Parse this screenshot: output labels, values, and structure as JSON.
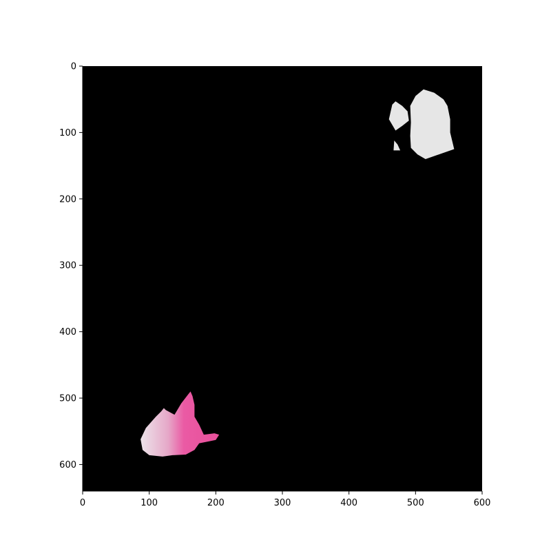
{
  "figure": {
    "background_color": "#ffffff",
    "image_background_color": "#000000"
  },
  "chart_data": {
    "type": "image",
    "title": "",
    "xlabel": "",
    "ylabel": "",
    "xlim": [
      0,
      600
    ],
    "ylim": [
      640,
      0
    ],
    "x_ticks": [
      0,
      100,
      200,
      300,
      400,
      500,
      600
    ],
    "y_ticks": [
      0,
      100,
      200,
      300,
      400,
      500,
      600
    ],
    "x_tick_labels": [
      "0",
      "100",
      "200",
      "300",
      "400",
      "500",
      "600"
    ],
    "y_tick_labels": [
      "0",
      "100",
      "200",
      "300",
      "400",
      "500",
      "600"
    ],
    "grid": false,
    "regions": [
      {
        "name": "pink-flower-petals",
        "color": "#e8589f",
        "highlight_color": "#e6e0e6",
        "polygon": [
          [
            87,
            562
          ],
          [
            95,
            545
          ],
          [
            110,
            528
          ],
          [
            118,
            520
          ],
          [
            122,
            515
          ],
          [
            125,
            518
          ],
          [
            138,
            525
          ],
          [
            148,
            508
          ],
          [
            158,
            495
          ],
          [
            162,
            490
          ],
          [
            165,
            497
          ],
          [
            168,
            510
          ],
          [
            168,
            528
          ],
          [
            175,
            540
          ],
          [
            182,
            555
          ],
          [
            198,
            553
          ],
          [
            205,
            555
          ],
          [
            200,
            563
          ],
          [
            190,
            565
          ],
          [
            175,
            568
          ],
          [
            168,
            578
          ],
          [
            155,
            585
          ],
          [
            135,
            586
          ],
          [
            120,
            588
          ],
          [
            100,
            586
          ],
          [
            90,
            578
          ]
        ]
      },
      {
        "name": "white-blob-large",
        "color": "#e6e6e6",
        "polygon": [
          [
            492,
            60
          ],
          [
            500,
            45
          ],
          [
            512,
            35
          ],
          [
            528,
            40
          ],
          [
            542,
            50
          ],
          [
            548,
            60
          ],
          [
            552,
            80
          ],
          [
            552,
            100
          ],
          [
            558,
            125
          ],
          [
            535,
            133
          ],
          [
            515,
            140
          ],
          [
            503,
            133
          ],
          [
            493,
            123
          ],
          [
            492,
            105
          ],
          [
            493,
            85
          ]
        ]
      },
      {
        "name": "white-blob-small-left",
        "color": "#e6e6e6",
        "polygon": [
          [
            460,
            80
          ],
          [
            465,
            58
          ],
          [
            470,
            53
          ],
          [
            480,
            60
          ],
          [
            488,
            68
          ],
          [
            490,
            82
          ],
          [
            480,
            90
          ],
          [
            470,
            97
          ]
        ]
      },
      {
        "name": "white-blob-tiny",
        "color": "#e6e6e6",
        "polygon": [
          [
            467,
            127
          ],
          [
            468,
            112
          ],
          [
            473,
            118
          ],
          [
            477,
            127
          ],
          [
            472,
            127
          ]
        ]
      }
    ]
  }
}
